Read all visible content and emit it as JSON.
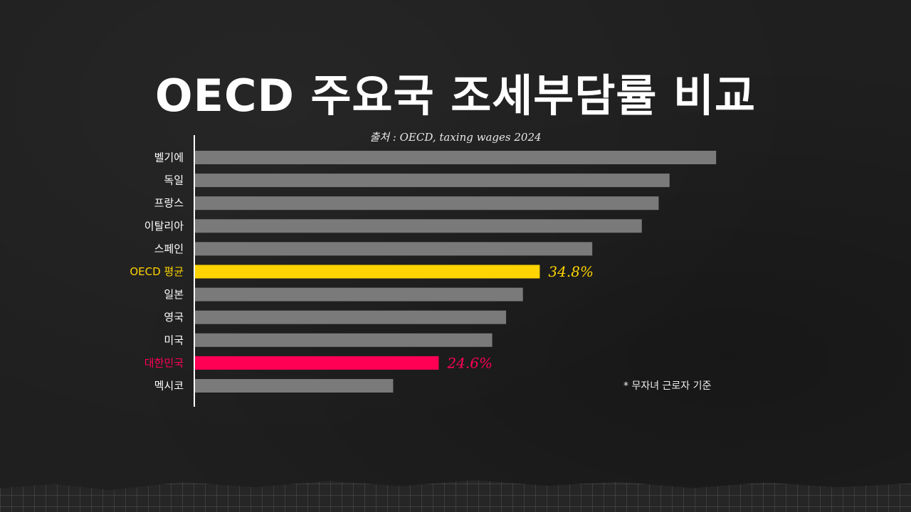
{
  "title": "OECD 주요국 조세부담률 비교",
  "source": "출처 : OECD, taxing wages 2024",
  "footnote": "* 무자녀 근로자 기준",
  "colors": {
    "default_bar": "#7a7a7a",
    "oecd_bar": "#ffd400",
    "korea_bar": "#ff0055",
    "axis": "#ffffff",
    "label": "#ffffff"
  },
  "chart_data": {
    "type": "bar",
    "orientation": "horizontal",
    "title": "OECD 주요국 조세부담률 비교",
    "xlim": [
      0,
      55
    ],
    "grid": false,
    "categories": [
      "벨기에",
      "독일",
      "프랑스",
      "이탈리아",
      "스페인",
      "OECD 평균",
      "일본",
      "영국",
      "미국",
      "대한민국",
      "멕시코"
    ],
    "values": [
      52.6,
      47.9,
      46.8,
      45.1,
      40.1,
      34.8,
      33.1,
      31.4,
      30.0,
      24.6,
      20.0
    ],
    "data_labels": [
      "",
      "",
      "",
      "",
      "",
      "34.8%",
      "",
      "",
      "",
      "24.6%",
      ""
    ],
    "highlight": [
      "",
      "",
      "",
      "",
      "",
      "oecd",
      "",
      "",
      "",
      "korea",
      ""
    ]
  }
}
